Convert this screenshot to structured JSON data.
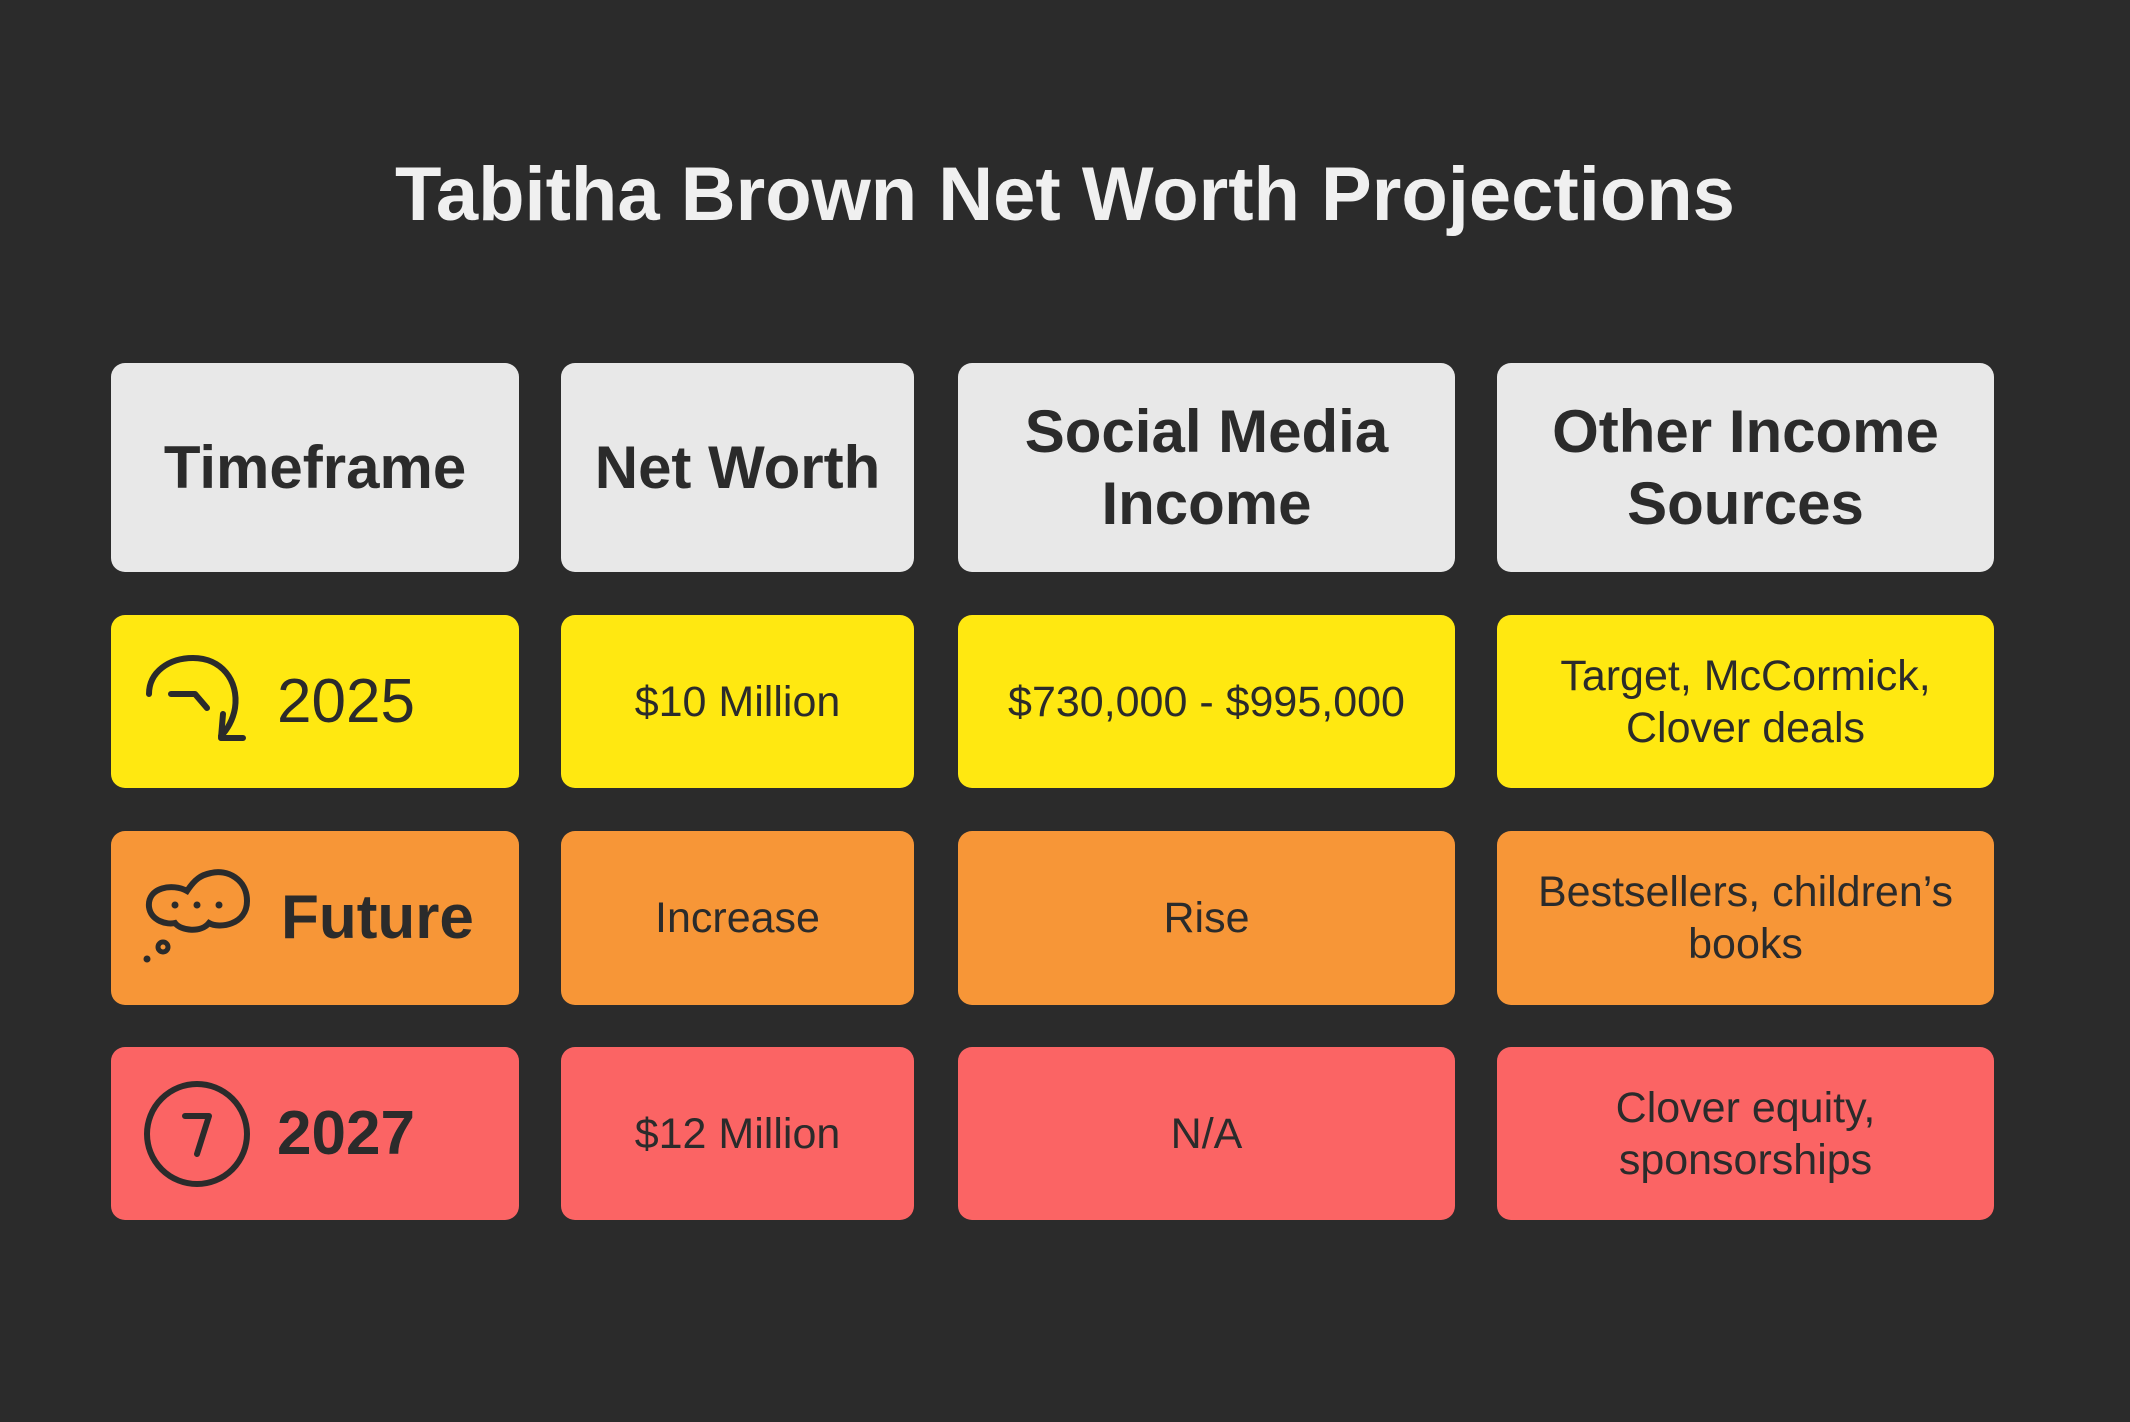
{
  "title": "Tabitha Brown Net Worth Projections",
  "colors": {
    "background": "#2b2b2b",
    "header": "#e8e8e8",
    "row_2025": "#ffe811",
    "row_future": "#f79637",
    "row_2027": "#fb6464"
  },
  "headers": [
    "Timeframe",
    "Net Worth",
    "Social Media Income",
    "Other Income Sources"
  ],
  "rows": [
    {
      "timeframe": "2025",
      "icon": "clock-arrow-icon",
      "net_worth": "$10 Million",
      "social_media_income": "$730,000 - $995,000",
      "other_income": "Target, McCormick, Clover deals"
    },
    {
      "timeframe": "Future",
      "icon": "thought-bubble-icon",
      "net_worth": "Increase",
      "social_media_income": "Rise",
      "other_income": "Bestsellers, children’s books"
    },
    {
      "timeframe": "2027",
      "icon": "circled-seven-icon",
      "net_worth": "$12 Million",
      "social_media_income": "N/A",
      "other_income": "Clover equity, sponsorships"
    }
  ]
}
